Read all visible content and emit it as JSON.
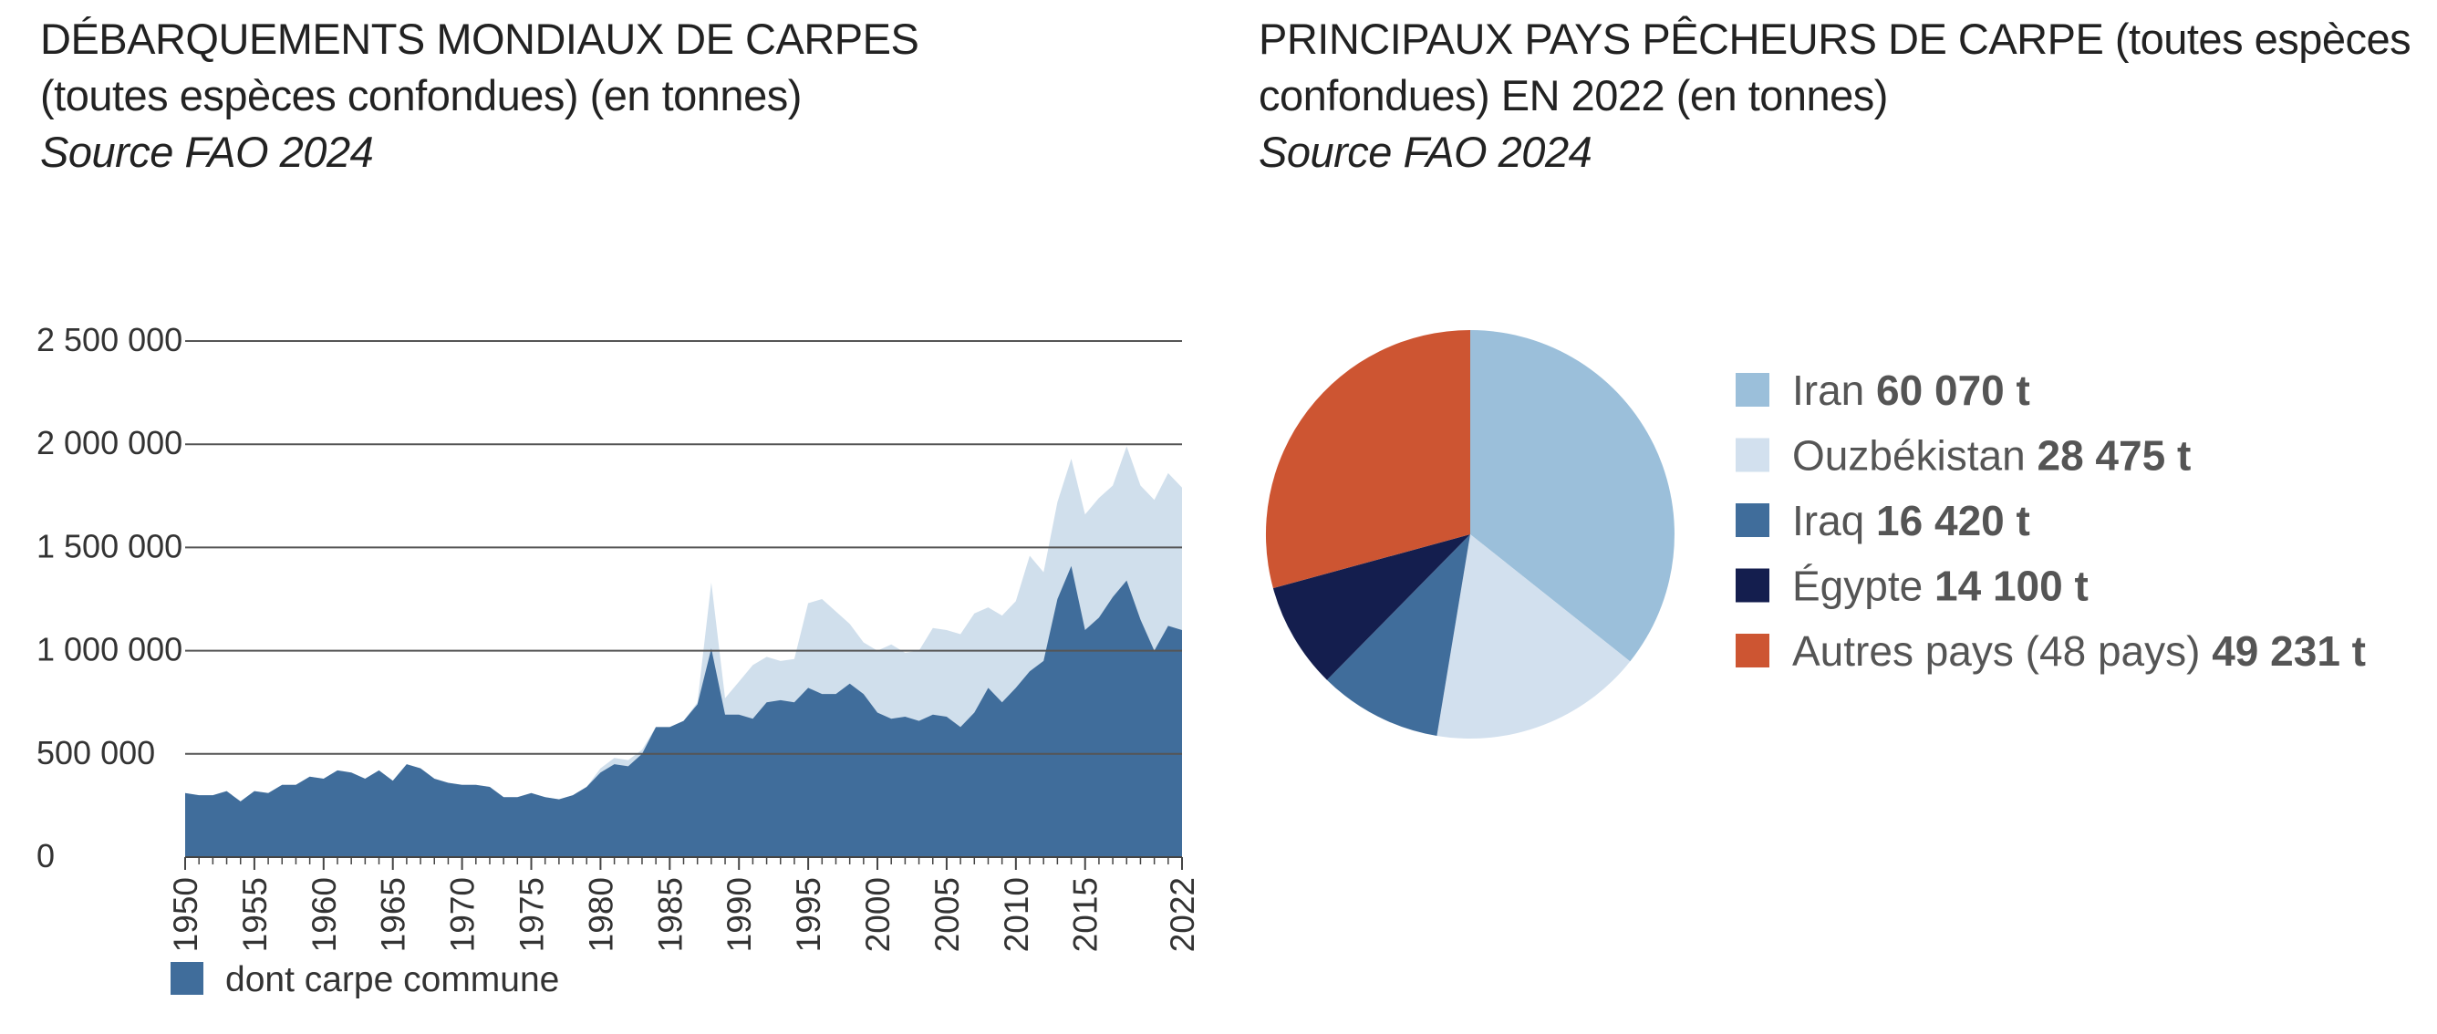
{
  "left": {
    "title_line1": "DÉBARQUEMENTS MONDIAUX DE CARPES",
    "title_line2": "(toutes espèces confondues) (en tonnes)",
    "source": "Source FAO 2024"
  },
  "right": {
    "title_line1": "PRINCIPAUX PAYS PÊCHEURS DE CARPE (toutes espèces",
    "title_line2": "confondues) EN 2022 (en tonnes)",
    "source": "Source FAO 2024"
  },
  "chart_data": [
    {
      "type": "area",
      "y_ticks": [
        0,
        500000,
        1000000,
        1500000,
        2000000,
        2500000
      ],
      "y_tick_labels": [
        "0",
        "500 000",
        "1 000 000",
        "1 500 000",
        "2 000 000",
        "2 500 000"
      ],
      "ylim": [
        0,
        2500000
      ],
      "xlim": [
        1950,
        2022
      ],
      "x_ticks": [
        1950,
        1955,
        1960,
        1965,
        1970,
        1975,
        1980,
        1985,
        1990,
        1995,
        2000,
        2005,
        2010,
        2015,
        2022
      ],
      "grid": "horizontal",
      "x": [
        1950,
        1951,
        1952,
        1953,
        1954,
        1955,
        1956,
        1957,
        1958,
        1959,
        1960,
        1961,
        1962,
        1963,
        1964,
        1965,
        1966,
        1967,
        1968,
        1969,
        1970,
        1971,
        1972,
        1973,
        1974,
        1975,
        1976,
        1977,
        1978,
        1979,
        1980,
        1981,
        1982,
        1983,
        1984,
        1985,
        1986,
        1987,
        1988,
        1989,
        1990,
        1991,
        1992,
        1993,
        1994,
        1995,
        1996,
        1997,
        1998,
        1999,
        2000,
        2001,
        2002,
        2003,
        2004,
        2005,
        2006,
        2007,
        2008,
        2009,
        2010,
        2011,
        2012,
        2013,
        2014,
        2015,
        2016,
        2017,
        2018,
        2019,
        2020,
        2021,
        2022
      ],
      "series": [
        {
          "color": "#d0dfec",
          "values": [
            310000,
            300000,
            300000,
            320000,
            270000,
            320000,
            310000,
            350000,
            350000,
            390000,
            380000,
            420000,
            410000,
            380000,
            420000,
            370000,
            450000,
            430000,
            380000,
            360000,
            350000,
            350000,
            340000,
            290000,
            290000,
            310000,
            290000,
            280000,
            300000,
            340000,
            430000,
            480000,
            470000,
            520000,
            630000,
            630000,
            660000,
            750000,
            1330000,
            770000,
            850000,
            930000,
            970000,
            950000,
            960000,
            1230000,
            1250000,
            1190000,
            1130000,
            1040000,
            1000000,
            1030000,
            990000,
            1000000,
            1110000,
            1100000,
            1080000,
            1180000,
            1210000,
            1170000,
            1240000,
            1460000,
            1380000,
            1720000,
            1930000,
            1660000,
            1740000,
            1800000,
            1990000,
            1800000,
            1730000,
            1860000,
            1790000
          ]
        },
        {
          "name": "dont carpe commune",
          "color": "#406d9b",
          "values": [
            310000,
            300000,
            300000,
            320000,
            270000,
            320000,
            310000,
            350000,
            350000,
            390000,
            380000,
            420000,
            410000,
            380000,
            420000,
            370000,
            450000,
            430000,
            380000,
            360000,
            350000,
            350000,
            340000,
            290000,
            290000,
            310000,
            290000,
            280000,
            300000,
            340000,
            410000,
            450000,
            440000,
            500000,
            630000,
            630000,
            660000,
            740000,
            1010000,
            690000,
            690000,
            670000,
            750000,
            760000,
            750000,
            820000,
            790000,
            790000,
            840000,
            790000,
            700000,
            670000,
            680000,
            660000,
            690000,
            680000,
            630000,
            700000,
            820000,
            750000,
            820000,
            900000,
            950000,
            1250000,
            1410000,
            1100000,
            1160000,
            1260000,
            1340000,
            1150000,
            1000000,
            1120000,
            1100000
          ]
        }
      ]
    },
    {
      "type": "pie",
      "slices": [
        {
          "label": "Iran",
          "value_label": "60 070 t",
          "value": 60070,
          "color": "#9bbfda"
        },
        {
          "label": "Ouzbékistan",
          "value_label": "28 475 t",
          "value": 28475,
          "color": "#d2e0ee"
        },
        {
          "label": "Iraq",
          "value_label": "16 420 t",
          "value": 16420,
          "color": "#406d9b"
        },
        {
          "label": "Égypte",
          "value_label": "14 100 t",
          "value": 14100,
          "color": "#141e4e"
        },
        {
          "label": "Autres pays (48 pays)",
          "value_label": "49 231 t",
          "value": 49231,
          "color": "#cd5532"
        }
      ]
    }
  ]
}
